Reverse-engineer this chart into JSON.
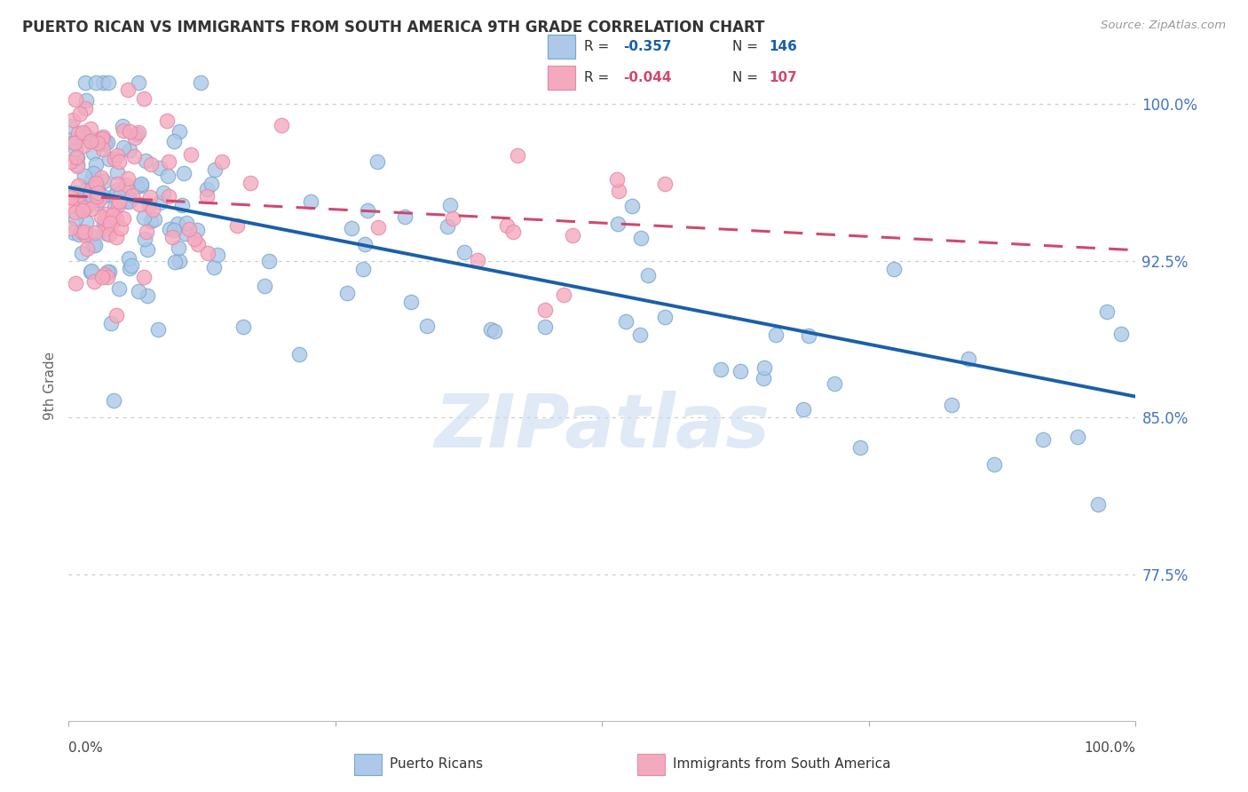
{
  "title": "PUERTO RICAN VS IMMIGRANTS FROM SOUTH AMERICA 9TH GRADE CORRELATION CHART",
  "source": "Source: ZipAtlas.com",
  "ylabel": "9th Grade",
  "xmin": 0.0,
  "xmax": 1.0,
  "ymin": 0.705,
  "ymax": 1.025,
  "blue_R": -0.357,
  "blue_N": 146,
  "pink_R": -0.044,
  "pink_N": 107,
  "blue_face_color": "#adc8e8",
  "pink_face_color": "#f4aabe",
  "blue_edge_color": "#7aaad0",
  "pink_edge_color": "#e888a8",
  "blue_line_color": "#1a5faa",
  "pink_line_color": "#d04870",
  "legend_label_blue": "Puerto Ricans",
  "legend_label_pink": "Immigrants from South America",
  "ytick_vals": [
    0.775,
    0.85,
    0.925,
    1.0
  ],
  "ytick_labels": [
    "77.5%",
    "85.0%",
    "92.5%",
    "100.0%"
  ],
  "watermark_color": "#c8d8f0",
  "title_color": "#333333",
  "source_color": "#999999",
  "y_label_color": "#4472c4",
  "grid_color": "#cccccc",
  "blue_line_y0": 0.96,
  "blue_line_y1": 0.86,
  "pink_line_y0": 0.956,
  "pink_line_y1": 0.93
}
